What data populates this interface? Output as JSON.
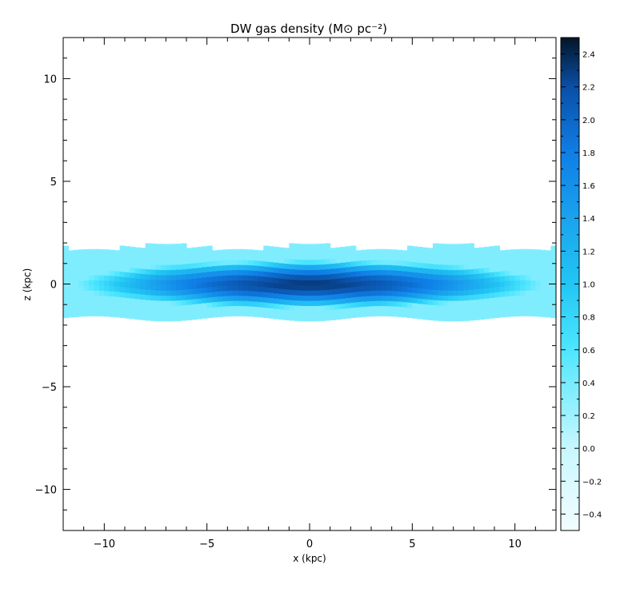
{
  "chart_data": {
    "type": "heatmap",
    "title": "DW gas density (M⊙ pc⁻²)",
    "xlabel": "x (kpc)",
    "ylabel": "z (kpc)",
    "xlim": [
      -12,
      12
    ],
    "ylim": [
      -12,
      12
    ],
    "x_ticks": [
      -10,
      -5,
      0,
      5,
      10
    ],
    "y_ticks": [
      -10,
      -5,
      0,
      5,
      10
    ],
    "x_tick_labels": [
      "−10",
      "−5",
      "0",
      "5",
      "10"
    ],
    "y_tick_labels": [
      "−10",
      "−5",
      "0",
      "5",
      "10"
    ],
    "colorbar": {
      "range": [
        -0.5,
        2.5
      ],
      "ticks": [
        -0.4,
        -0.2,
        0.0,
        0.2,
        0.4,
        0.6,
        0.8,
        1.0,
        1.2,
        1.4,
        1.6,
        1.8,
        2.0,
        2.2,
        2.4
      ],
      "tick_labels": [
        "−0.4",
        "−0.2",
        "0.0",
        "0.2",
        "0.4",
        "0.6",
        "0.8",
        "1.0",
        "1.2",
        "1.4",
        "1.6",
        "1.8",
        "2.0",
        "2.2",
        "2.4"
      ],
      "color_stops": [
        {
          "value": -0.5,
          "color": "#f2fdff"
        },
        {
          "value": 0.0,
          "color": "#c8f7ff"
        },
        {
          "value": 0.6,
          "color": "#4de6ff"
        },
        {
          "value": 1.0,
          "color": "#22c6f4"
        },
        {
          "value": 1.4,
          "color": "#1aa3ee"
        },
        {
          "value": 1.8,
          "color": "#0f7ee6"
        },
        {
          "value": 2.2,
          "color": "#0a4fa6"
        },
        {
          "value": 2.5,
          "color": "#031528"
        }
      ]
    },
    "disk_profile": {
      "peak_log_density": 2.3,
      "scale_height_kpc": 0.95,
      "radial_scale_kpc": 11.5,
      "edge_height_kpc": 1.8
    }
  }
}
